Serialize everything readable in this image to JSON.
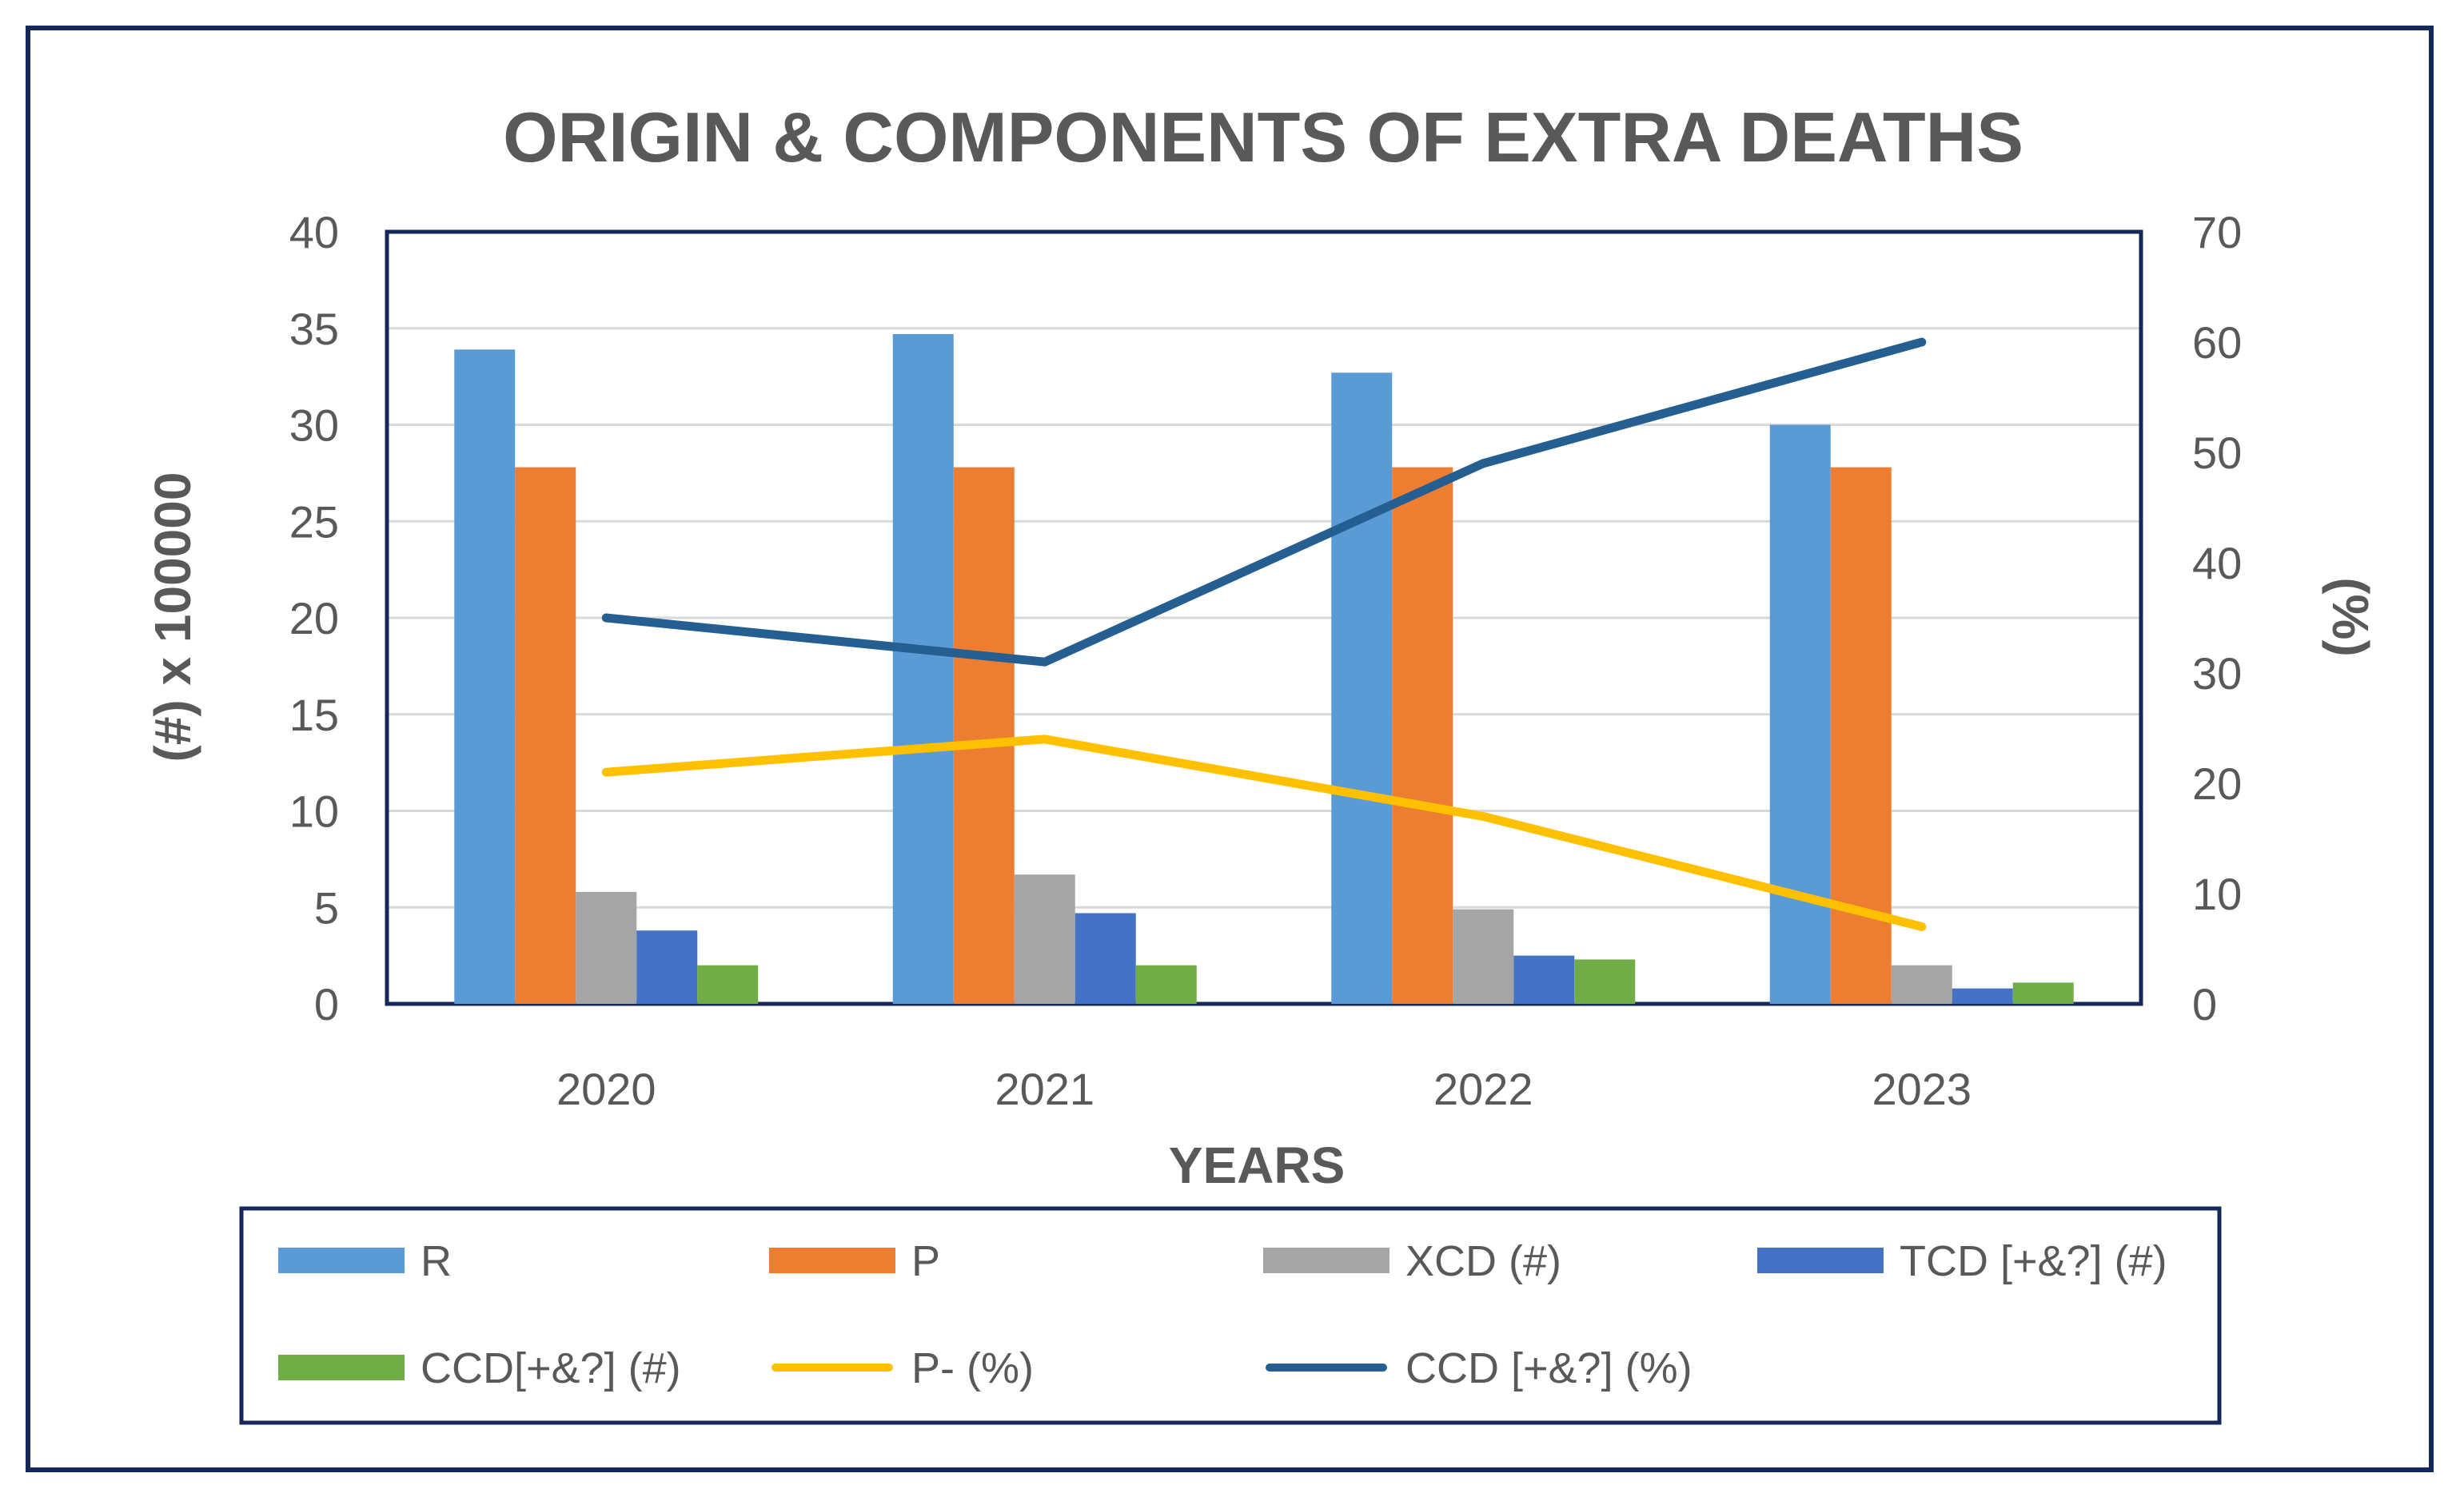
{
  "chart_data": {
    "type": "bar",
    "title": "ORIGIN & COMPONENTS OF EXTRA DEATHS",
    "xlabel": "YEARS",
    "ylabel_left": "(#)   x 100000",
    "ylabel_right": "(%)",
    "categories": [
      "2020",
      "2021",
      "2022",
      "2023"
    ],
    "ylim_left": [
      0,
      40
    ],
    "ylim_right": [
      0,
      70
    ],
    "yticks_left": [
      "0",
      "5",
      "10",
      "15",
      "20",
      "25",
      "30",
      "35",
      "40"
    ],
    "yticks_right": [
      "0",
      "10",
      "20",
      "30",
      "40",
      "50",
      "60",
      "70"
    ],
    "grid": true,
    "legend_position": "bottom",
    "series": [
      {
        "name": "R",
        "type": "bar",
        "axis": "left",
        "color": "#5b9bd5",
        "values": [
          33.9,
          34.7,
          32.7,
          30.0
        ]
      },
      {
        "name": "P",
        "type": "bar",
        "axis": "left",
        "color": "#ed7d31",
        "values": [
          27.8,
          27.8,
          27.8,
          27.8
        ]
      },
      {
        "name": "XCD (#)",
        "type": "bar",
        "axis": "left",
        "color": "#a5a5a5",
        "values": [
          5.8,
          6.7,
          4.9,
          2.0
        ]
      },
      {
        "name": "TCD [+&?] (#)",
        "type": "bar",
        "axis": "left",
        "color": "#4472c4",
        "values": [
          3.8,
          4.7,
          2.5,
          0.8
        ]
      },
      {
        "name": "CCD[+&?] (#)",
        "type": "bar",
        "axis": "left",
        "color": "#70ad47",
        "values": [
          2.0,
          2.0,
          2.3,
          1.1
        ]
      },
      {
        "name": "P- (%)",
        "type": "line",
        "axis": "right",
        "color": "#ffc000",
        "values": [
          21.0,
          24.0,
          17.0,
          7.0
        ]
      },
      {
        "name": "CCD [+&?] (%)",
        "type": "line",
        "axis": "right",
        "color": "#255e91",
        "values": [
          35.0,
          31.0,
          49.0,
          60.0
        ]
      }
    ]
  }
}
